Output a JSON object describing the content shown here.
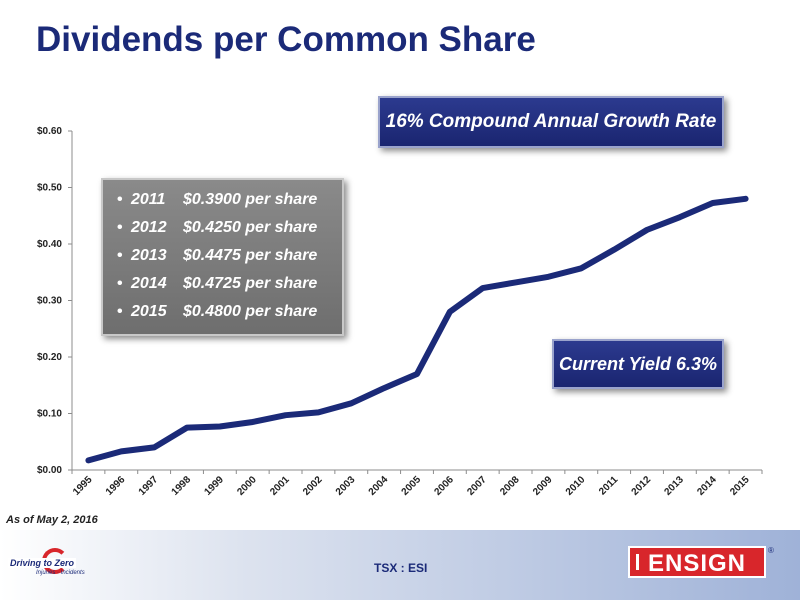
{
  "title": "Dividends per Common Share",
  "cagr_label": "16% Compound Annual Growth Rate",
  "yield_label": "Current Yield 6.3%",
  "dividends": [
    {
      "year": "2011",
      "amount": "$0.3900 per share"
    },
    {
      "year": "2012",
      "amount": "$0.4250 per share"
    },
    {
      "year": "2013",
      "amount": "$0.4475 per share"
    },
    {
      "year": "2014",
      "amount": "$0.4725 per share"
    },
    {
      "year": "2015",
      "amount": "$0.4800 per share"
    }
  ],
  "as_of": "As of May 2, 2016",
  "footer": {
    "ticker": "TSX : ESI",
    "dtz_logo_text": "Driving to Zero",
    "dtz_logo_sub": "Injuries · Incidents",
    "logo_text": "ENSIGN",
    "registered": "®"
  },
  "colors": {
    "line": "#1b2a78",
    "title": "#1b2a78",
    "box": "#1f2b7a",
    "accent": "#d8262b"
  },
  "chart_data": {
    "type": "line",
    "title": "",
    "xlabel": "",
    "ylabel": "",
    "x": [
      "1995",
      "1996",
      "1997",
      "1998",
      "1999",
      "2000",
      "2001",
      "2002",
      "2003",
      "2004",
      "2005",
      "2006",
      "2007",
      "2008",
      "2009",
      "2010",
      "2011",
      "2012",
      "2013",
      "2014",
      "2015"
    ],
    "series": [
      {
        "values": [
          0.017,
          0.033,
          0.04,
          0.075,
          0.077,
          0.085,
          0.097,
          0.102,
          0.118,
          0.145,
          0.17,
          0.28,
          0.322,
          0.332,
          0.342,
          0.357,
          0.39,
          0.425,
          0.4475,
          0.4725,
          0.48
        ]
      }
    ],
    "ylim": [
      0,
      0.6
    ],
    "yticks": [
      0,
      0.1,
      0.2,
      0.3,
      0.4,
      0.5,
      0.6
    ],
    "ytick_labels": [
      "$0.00",
      "$0.10",
      "$0.20",
      "$0.30",
      "$0.40",
      "$0.50",
      "$0.60"
    ],
    "grid": false,
    "legend": "none"
  }
}
